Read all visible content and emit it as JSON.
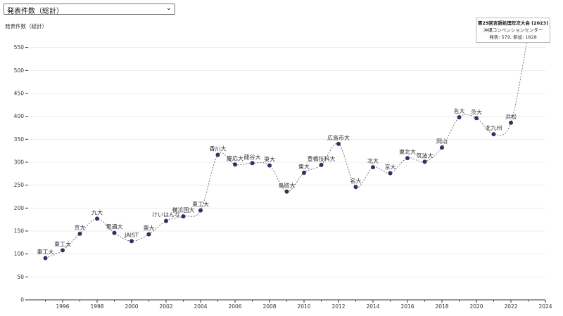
{
  "selector": {
    "value": "発表件数（総計）"
  },
  "tooltip": {
    "title": "第29回言語処理年次大会 (2023)",
    "venue": "沖縄コンベンションセンター",
    "stats": "発表: 579, 参加: 1828"
  },
  "chart_data": {
    "type": "line",
    "ylabel": "発表件数（総計）",
    "xlim": [
      1994,
      2024
    ],
    "ylim": [
      0,
      600
    ],
    "yticks": [
      0,
      50,
      100,
      150,
      200,
      250,
      300,
      350,
      400,
      450,
      500,
      550
    ],
    "xticks": [
      1996,
      1998,
      2000,
      2002,
      2004,
      2006,
      2008,
      2010,
      2012,
      2014,
      2016,
      2018,
      2020,
      2022,
      2024
    ],
    "grid": true,
    "colors": {
      "point": "#2d3263",
      "highlight": "#d9614c",
      "line": "#777777"
    },
    "points": [
      {
        "x": 1995,
        "y": 91,
        "label": "東工大"
      },
      {
        "x": 1996,
        "y": 108,
        "label": "東工大"
      },
      {
        "x": 1997,
        "y": 144,
        "label": "京大"
      },
      {
        "x": 1998,
        "y": 177,
        "label": "九大"
      },
      {
        "x": 1999,
        "y": 146,
        "label": "電通大"
      },
      {
        "x": 2000,
        "y": 128,
        "label": "JAIST"
      },
      {
        "x": 2001,
        "y": 143,
        "label": "東大"
      },
      {
        "x": 2002,
        "y": 172,
        "label": "けいはんな"
      },
      {
        "x": 2003,
        "y": 182,
        "label": "横浜国大"
      },
      {
        "x": 2004,
        "y": 195,
        "label": "東工大"
      },
      {
        "x": 2005,
        "y": 316,
        "label": "香川大"
      },
      {
        "x": 2006,
        "y": 295,
        "label": "慶応大"
      },
      {
        "x": 2007,
        "y": 298,
        "label": "龍谷大"
      },
      {
        "x": 2008,
        "y": 293,
        "label": "東大"
      },
      {
        "x": 2009,
        "y": 236,
        "label": "鳥取大"
      },
      {
        "x": 2010,
        "y": 277,
        "label": "東大"
      },
      {
        "x": 2011,
        "y": 294,
        "label": "豊橋技科大"
      },
      {
        "x": 2012,
        "y": 340,
        "label": "広島市大"
      },
      {
        "x": 2013,
        "y": 246,
        "label": "名大"
      },
      {
        "x": 2014,
        "y": 289,
        "label": "北大"
      },
      {
        "x": 2015,
        "y": 276,
        "label": "京大"
      },
      {
        "x": 2016,
        "y": 309,
        "label": "東北大"
      },
      {
        "x": 2017,
        "y": 301,
        "label": "筑波大"
      },
      {
        "x": 2018,
        "y": 332,
        "label": "岡山"
      },
      {
        "x": 2019,
        "y": 398,
        "label": "名大"
      },
      {
        "x": 2020,
        "y": 396,
        "label": "茨大"
      },
      {
        "x": 2021,
        "y": 361,
        "label": "北九州"
      },
      {
        "x": 2022,
        "y": 386,
        "label": "浜松"
      },
      {
        "x": 2023,
        "y": 579,
        "label": "",
        "highlight": true
      }
    ]
  }
}
